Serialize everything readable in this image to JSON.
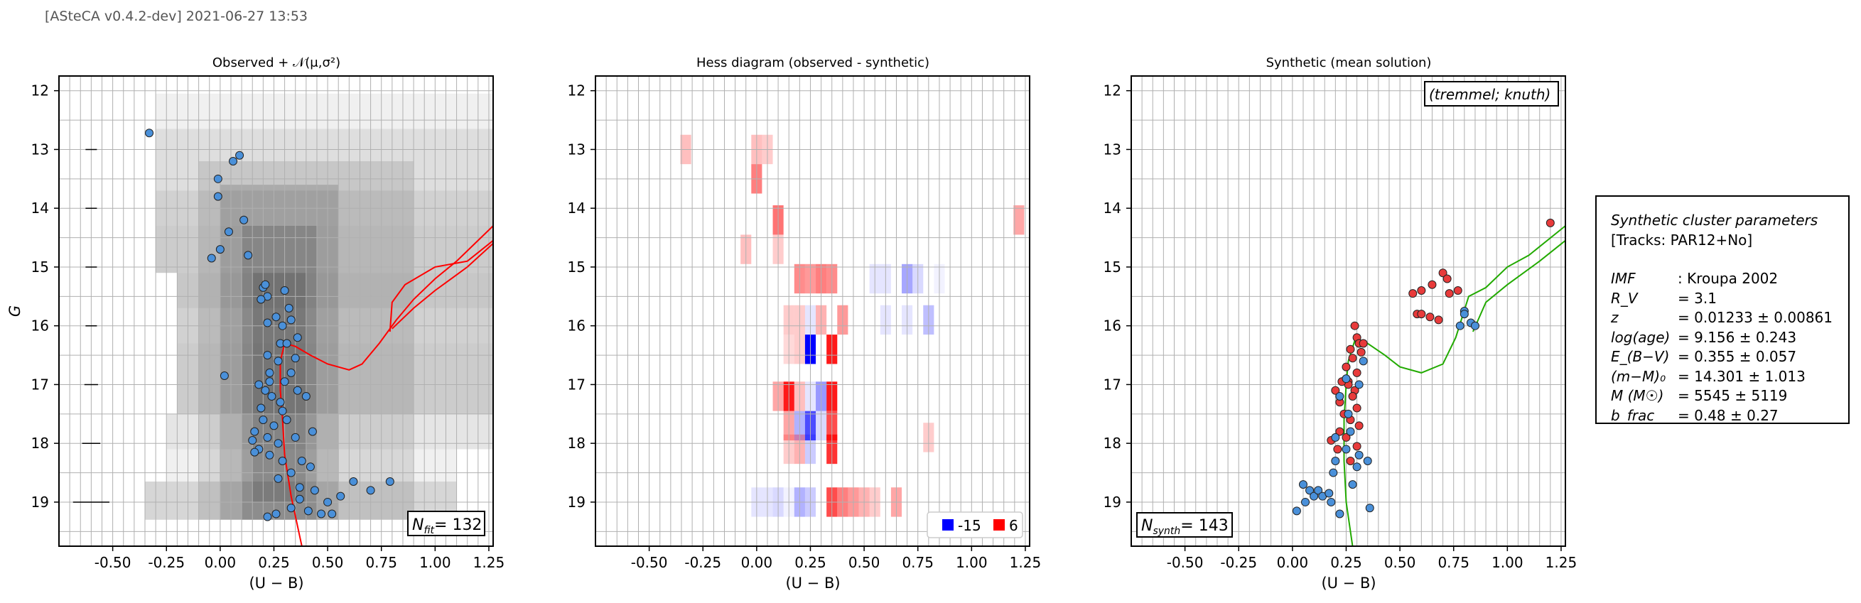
{
  "header": "[ASteCA v0.4.2-dev] 2021-06-27 13:53",
  "panels": [
    {
      "title": "Observed + 𝒩(μ,σ²)",
      "badge": "N",
      "badge_sub": "fit",
      "badge_val": "= 132"
    },
    {
      "title": "Hess diagram (observed - synthetic)"
    },
    {
      "title": "Synthetic (mean solution)",
      "badge": "N",
      "badge_sub": "synth",
      "badge_val": "= 143",
      "corner_label": "(tremmel; knuth)"
    }
  ],
  "xlabel": "(U − B)",
  "ylabel": "G",
  "legend": [
    {
      "label": "-15",
      "color": "#0000ff"
    },
    {
      "label": "6",
      "color": "#ff0000"
    }
  ],
  "params": {
    "title": "Synthetic cluster parameters",
    "tracks": "[Tracks: PAR12+No]",
    "rows": [
      {
        "label": "IMF",
        "value": ": Kroupa 2002"
      },
      {
        "label": "R_V",
        "value": "=  3.1"
      },
      {
        "label": "z",
        "value": "=  0.01233 ± 0.00861"
      },
      {
        "label": "log(age)",
        "value": "=  9.156 ± 0.243"
      },
      {
        "label": "E_(B−V)",
        "value": "=  0.355 ± 0.057"
      },
      {
        "label": "(m−M)₀",
        "value": "=  14.301 ± 1.013"
      },
      {
        "label": "M (M☉)",
        "value": "=  5545 ± 5119"
      },
      {
        "label": "b_frac",
        "value": "=  0.48 ± 0.27"
      }
    ]
  },
  "colors": {
    "observed": "#4a90d9",
    "synthetic_red": "#e83b3b",
    "isochrone_obs": "#ff0000",
    "isochrone_syn": "#22aa00"
  },
  "chart_data": [
    {
      "type": "scatter",
      "title": "Observed + 𝒩(μ,σ²)",
      "xlabel": "(U − B)",
      "ylabel": "G",
      "xlim": [
        -0.75,
        1.27
      ],
      "ylim": [
        19.75,
        11.75
      ],
      "xticks": [
        "-0.50",
        "-0.25",
        "0.00",
        "0.25",
        "0.50",
        "0.75",
        "1.00",
        "1.25"
      ],
      "yticks": [
        "12",
        "13",
        "14",
        "15",
        "16",
        "17",
        "18",
        "19"
      ],
      "points": [
        [
          -0.33,
          12.72
        ],
        [
          0.06,
          13.2
        ],
        [
          0.09,
          13.1
        ],
        [
          -0.01,
          13.5
        ],
        [
          -0.01,
          13.8
        ],
        [
          0.04,
          14.4
        ],
        [
          0.11,
          14.2
        ],
        [
          0.0,
          14.7
        ],
        [
          -0.04,
          14.85
        ],
        [
          0.13,
          14.8
        ],
        [
          0.2,
          15.35
        ],
        [
          0.21,
          15.3
        ],
        [
          0.22,
          15.5
        ],
        [
          0.19,
          15.55
        ],
        [
          0.3,
          15.4
        ],
        [
          0.32,
          15.7
        ],
        [
          0.33,
          15.9
        ],
        [
          0.26,
          15.85
        ],
        [
          0.29,
          16.0
        ],
        [
          0.22,
          15.95
        ],
        [
          0.28,
          16.3
        ],
        [
          0.31,
          16.3
        ],
        [
          0.22,
          16.5
        ],
        [
          0.36,
          16.2
        ],
        [
          0.23,
          16.8
        ],
        [
          0.27,
          16.6
        ],
        [
          0.35,
          16.55
        ],
        [
          0.33,
          16.8
        ],
        [
          0.18,
          17.0
        ],
        [
          0.21,
          17.1
        ],
        [
          0.24,
          17.2
        ],
        [
          0.19,
          17.4
        ],
        [
          0.3,
          16.95
        ],
        [
          0.36,
          17.1
        ],
        [
          0.4,
          17.2
        ],
        [
          0.43,
          17.8
        ],
        [
          0.28,
          17.3
        ],
        [
          0.16,
          17.8
        ],
        [
          0.2,
          17.6
        ],
        [
          0.25,
          17.7
        ],
        [
          0.15,
          17.95
        ],
        [
          0.18,
          18.1
        ],
        [
          0.22,
          17.9
        ],
        [
          0.27,
          18.0
        ],
        [
          0.31,
          17.6
        ],
        [
          0.35,
          17.9
        ],
        [
          0.38,
          18.3
        ],
        [
          0.42,
          18.4
        ],
        [
          0.29,
          18.3
        ],
        [
          0.23,
          18.2
        ],
        [
          0.16,
          18.15
        ],
        [
          0.27,
          18.6
        ],
        [
          0.33,
          18.5
        ],
        [
          0.37,
          18.75
        ],
        [
          0.44,
          18.8
        ],
        [
          0.5,
          19.0
        ],
        [
          0.52,
          19.2
        ],
        [
          0.56,
          18.9
        ],
        [
          0.62,
          18.65
        ],
        [
          0.7,
          18.8
        ],
        [
          0.79,
          18.65
        ],
        [
          0.47,
          19.2
        ],
        [
          0.41,
          19.15
        ],
        [
          0.33,
          19.1
        ],
        [
          0.26,
          19.2
        ],
        [
          0.22,
          19.25
        ],
        [
          0.37,
          18.95
        ],
        [
          0.02,
          16.85
        ],
        [
          0.29,
          17.45
        ],
        [
          0.23,
          16.95
        ]
      ],
      "isochrone": [
        [
          0.38,
          19.75
        ],
        [
          0.33,
          18.9
        ],
        [
          0.3,
          18.2
        ],
        [
          0.29,
          17.6
        ],
        [
          0.28,
          17.1
        ],
        [
          0.28,
          16.6
        ],
        [
          0.3,
          16.3
        ],
        [
          0.35,
          16.35
        ],
        [
          0.42,
          16.5
        ],
        [
          0.5,
          16.65
        ],
        [
          0.6,
          16.75
        ],
        [
          0.66,
          16.65
        ],
        [
          0.74,
          16.3
        ],
        [
          0.82,
          15.9
        ],
        [
          0.9,
          15.55
        ],
        [
          1.0,
          15.2
        ],
        [
          1.1,
          14.9
        ],
        [
          1.27,
          14.3
        ]
      ],
      "isochrone2": [
        [
          0.79,
          16.1
        ],
        [
          0.8,
          15.6
        ],
        [
          0.86,
          15.3
        ],
        [
          1.0,
          15.0
        ],
        [
          1.15,
          14.9
        ],
        [
          1.27,
          14.55
        ]
      ],
      "isochrone3": [
        [
          0.8,
          16.05
        ],
        [
          0.9,
          15.7
        ],
        [
          1.0,
          15.4
        ],
        [
          1.15,
          15.0
        ],
        [
          1.27,
          14.6
        ]
      ],
      "error_bars": [
        [
          13,
          0.05
        ],
        [
          14,
          0.05
        ],
        [
          15,
          0.05
        ],
        [
          16,
          0.05
        ],
        [
          17,
          0.06
        ],
        [
          18,
          0.08
        ],
        [
          19,
          0.16
        ]
      ]
    },
    {
      "type": "heatmap",
      "title": "Hess diagram (observed - synthetic)",
      "xlabel": "(U − B)",
      "ylabel": "",
      "xlim": [
        -0.75,
        1.27
      ],
      "ylim": [
        19.75,
        11.75
      ],
      "xticks": [
        "-0.50",
        "-0.25",
        "0.00",
        "0.25",
        "0.50",
        "0.75",
        "1.00",
        "1.25"
      ],
      "yticks": [
        "12",
        "13",
        "14",
        "15",
        "16",
        "17",
        "18",
        "19"
      ],
      "colorbar_range": [
        -15,
        6
      ],
      "cells": [
        [
          -0.33,
          13.0,
          0.25
        ],
        [
          0.0,
          13.0,
          0.25
        ],
        [
          0.05,
          13.0,
          0.2
        ],
        [
          0.0,
          13.5,
          0.5
        ],
        [
          0.1,
          14.2,
          0.55
        ],
        [
          1.22,
          14.2,
          0.35
        ],
        [
          -0.05,
          14.7,
          0.25
        ],
        [
          0.1,
          14.7,
          0.2
        ],
        [
          0.2,
          15.2,
          0.45
        ],
        [
          0.25,
          15.2,
          0.4
        ],
        [
          0.3,
          15.2,
          0.5
        ],
        [
          0.35,
          15.2,
          0.45
        ],
        [
          0.55,
          15.2,
          -0.1
        ],
        [
          0.6,
          15.2,
          -0.1
        ],
        [
          0.7,
          15.2,
          -0.35
        ],
        [
          0.75,
          15.2,
          -0.15
        ],
        [
          0.85,
          15.2,
          -0.05
        ],
        [
          0.15,
          15.9,
          0.2
        ],
        [
          0.2,
          15.9,
          0.2
        ],
        [
          0.25,
          15.9,
          -0.1
        ],
        [
          0.3,
          15.9,
          0.3
        ],
        [
          0.4,
          15.9,
          0.4
        ],
        [
          0.6,
          15.9,
          -0.1
        ],
        [
          0.7,
          15.9,
          -0.1
        ],
        [
          0.8,
          15.9,
          -0.25
        ],
        [
          0.15,
          16.4,
          0.15
        ],
        [
          0.2,
          16.4,
          0.2
        ],
        [
          0.25,
          16.4,
          -1.0
        ],
        [
          0.35,
          16.4,
          0.9
        ],
        [
          0.1,
          17.2,
          0.35
        ],
        [
          0.15,
          17.2,
          0.9
        ],
        [
          0.2,
          17.2,
          0.25
        ],
        [
          0.25,
          17.2,
          -0.1
        ],
        [
          0.3,
          17.2,
          -0.4
        ],
        [
          0.35,
          17.2,
          0.9
        ],
        [
          0.15,
          17.7,
          0.35
        ],
        [
          0.2,
          17.7,
          -0.3
        ],
        [
          0.25,
          17.7,
          -0.7
        ],
        [
          0.3,
          17.7,
          -0.15
        ],
        [
          0.35,
          17.7,
          0.7
        ],
        [
          0.8,
          17.9,
          0.2
        ],
        [
          0.15,
          18.1,
          0.2
        ],
        [
          0.2,
          18.1,
          0.3
        ],
        [
          0.25,
          18.1,
          -0.2
        ],
        [
          0.35,
          18.1,
          0.8
        ],
        [
          0.0,
          19.0,
          -0.1
        ],
        [
          0.05,
          19.0,
          -0.1
        ],
        [
          0.1,
          19.0,
          -0.15
        ],
        [
          0.15,
          19.0,
          -0.05
        ],
        [
          0.2,
          19.0,
          -0.3
        ],
        [
          0.25,
          19.0,
          -0.2
        ],
        [
          0.35,
          19.0,
          0.7
        ],
        [
          0.4,
          19.0,
          0.5
        ],
        [
          0.45,
          19.0,
          0.4
        ],
        [
          0.5,
          19.0,
          0.3
        ],
        [
          0.55,
          19.0,
          0.2
        ],
        [
          0.65,
          19.0,
          0.35
        ]
      ]
    },
    {
      "type": "scatter",
      "title": "Synthetic (mean solution)",
      "xlabel": "(U − B)",
      "ylabel": "",
      "xlim": [
        -0.75,
        1.27
      ],
      "ylim": [
        19.75,
        11.75
      ],
      "xticks": [
        "-0.50",
        "-0.25",
        "0.00",
        "0.25",
        "0.50",
        "0.75",
        "1.00",
        "1.25"
      ],
      "yticks": [
        "12",
        "13",
        "14",
        "15",
        "16",
        "17",
        "18",
        "19"
      ],
      "points_blue": [
        [
          0.02,
          19.15
        ],
        [
          0.06,
          19.0
        ],
        [
          0.08,
          18.8
        ],
        [
          0.1,
          18.9
        ],
        [
          0.12,
          18.8
        ],
        [
          0.14,
          18.9
        ],
        [
          0.17,
          18.85
        ],
        [
          0.18,
          19.0
        ],
        [
          0.22,
          19.2
        ],
        [
          0.28,
          18.7
        ],
        [
          0.3,
          18.4
        ],
        [
          0.31,
          18.2
        ],
        [
          0.35,
          18.3
        ],
        [
          0.36,
          19.1
        ],
        [
          0.25,
          18.1
        ],
        [
          0.26,
          17.5
        ],
        [
          0.27,
          17.8
        ],
        [
          0.2,
          17.9
        ],
        [
          0.22,
          17.2
        ],
        [
          0.25,
          16.9
        ],
        [
          0.78,
          16.0
        ],
        [
          0.8,
          15.75
        ],
        [
          0.83,
          15.95
        ],
        [
          0.85,
          16.0
        ],
        [
          0.8,
          15.8
        ],
        [
          0.05,
          18.7
        ],
        [
          0.2,
          18.3
        ],
        [
          0.31,
          17.0
        ],
        [
          0.33,
          16.6
        ],
        [
          0.19,
          18.5
        ]
      ],
      "points_red": [
        [
          0.29,
          16.0
        ],
        [
          0.3,
          16.2
        ],
        [
          0.31,
          16.3
        ],
        [
          0.27,
          16.4
        ],
        [
          0.28,
          16.55
        ],
        [
          0.32,
          16.45
        ],
        [
          0.25,
          16.7
        ],
        [
          0.3,
          16.8
        ],
        [
          0.26,
          16.95
        ],
        [
          0.29,
          17.1
        ],
        [
          0.28,
          17.2
        ],
        [
          0.22,
          17.3
        ],
        [
          0.24,
          17.5
        ],
        [
          0.27,
          17.6
        ],
        [
          0.3,
          17.4
        ],
        [
          0.22,
          17.8
        ],
        [
          0.25,
          17.9
        ],
        [
          0.18,
          17.95
        ],
        [
          0.21,
          18.1
        ],
        [
          0.27,
          18.3
        ],
        [
          0.3,
          18.05
        ],
        [
          0.26,
          17.0
        ],
        [
          0.23,
          16.95
        ],
        [
          0.33,
          16.3
        ],
        [
          0.56,
          15.45
        ],
        [
          0.6,
          15.4
        ],
        [
          0.65,
          15.3
        ],
        [
          0.7,
          15.1
        ],
        [
          0.72,
          15.2
        ],
        [
          0.73,
          15.45
        ],
        [
          0.77,
          15.4
        ],
        [
          0.58,
          15.8
        ],
        [
          0.6,
          15.8
        ],
        [
          0.64,
          15.85
        ],
        [
          0.68,
          15.9
        ],
        [
          1.2,
          14.25
        ],
        [
          0.2,
          17.1
        ],
        [
          0.31,
          17.7
        ]
      ],
      "isochrone": [
        [
          0.28,
          19.75
        ],
        [
          0.25,
          19.0
        ],
        [
          0.24,
          18.3
        ],
        [
          0.24,
          17.6
        ],
        [
          0.25,
          17.0
        ],
        [
          0.26,
          16.6
        ],
        [
          0.29,
          16.25
        ],
        [
          0.35,
          16.3
        ],
        [
          0.43,
          16.5
        ],
        [
          0.5,
          16.7
        ],
        [
          0.6,
          16.8
        ],
        [
          0.7,
          16.65
        ],
        [
          0.76,
          16.2
        ],
        [
          0.82,
          15.5
        ],
        [
          0.9,
          15.35
        ],
        [
          1.0,
          15.0
        ],
        [
          1.1,
          14.8
        ],
        [
          1.27,
          14.3
        ]
      ],
      "isochrone2": [
        [
          0.84,
          16.1
        ],
        [
          0.9,
          15.6
        ],
        [
          1.0,
          15.3
        ],
        [
          1.15,
          14.9
        ],
        [
          1.27,
          14.55
        ]
      ]
    }
  ]
}
